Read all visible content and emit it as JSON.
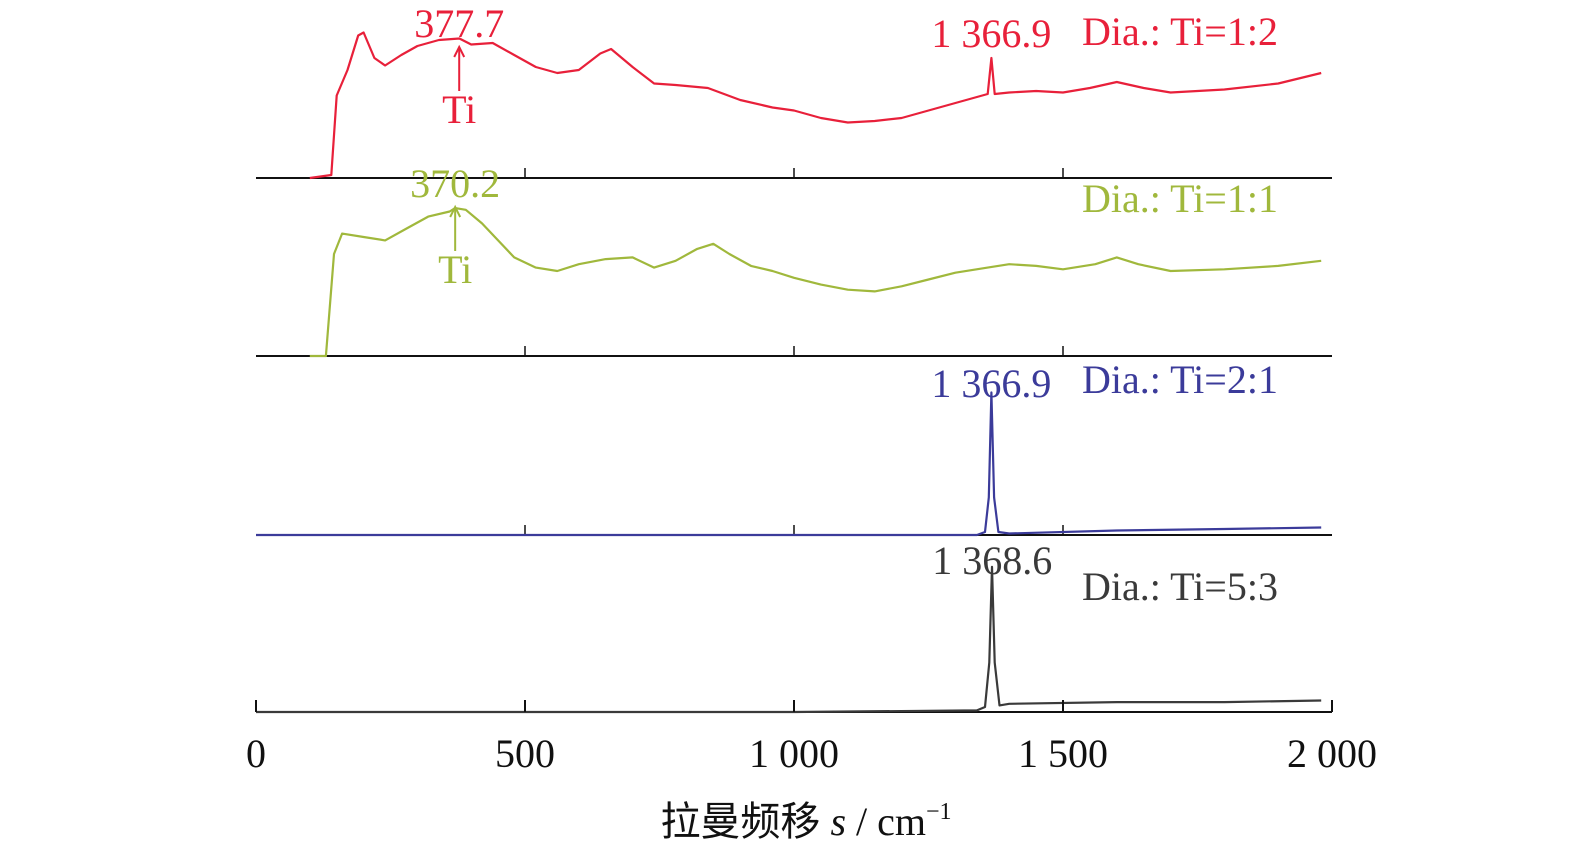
{
  "chart_data": {
    "type": "line",
    "layout": "stacked-offset",
    "xlabel": "拉曼频移",
    "xlabel_var": "s",
    "xlabel_unit": "cm",
    "xlabel_unit_exp": "−1",
    "xlim": [
      0,
      2000
    ],
    "x_ticks": [
      0,
      500,
      1000,
      1500,
      2000
    ],
    "x_tick_labels": [
      "0",
      "500",
      "1 000",
      "1 500",
      "2 000"
    ],
    "series": [
      {
        "name": "Dia.: Ti=1:2",
        "color": "#e8203a",
        "points": [
          [
            100,
            0.0
          ],
          [
            140,
            0.02
          ],
          [
            150,
            0.55
          ],
          [
            170,
            0.72
          ],
          [
            190,
            0.95
          ],
          [
            200,
            0.97
          ],
          [
            220,
            0.8
          ],
          [
            240,
            0.75
          ],
          [
            270,
            0.82
          ],
          [
            300,
            0.88
          ],
          [
            340,
            0.92
          ],
          [
            378,
            0.93
          ],
          [
            400,
            0.89
          ],
          [
            440,
            0.9
          ],
          [
            480,
            0.82
          ],
          [
            520,
            0.74
          ],
          [
            560,
            0.7
          ],
          [
            600,
            0.72
          ],
          [
            640,
            0.83
          ],
          [
            660,
            0.86
          ],
          [
            700,
            0.74
          ],
          [
            740,
            0.63
          ],
          [
            780,
            0.62
          ],
          [
            840,
            0.6
          ],
          [
            900,
            0.52
          ],
          [
            960,
            0.47
          ],
          [
            1000,
            0.45
          ],
          [
            1050,
            0.4
          ],
          [
            1100,
            0.37
          ],
          [
            1150,
            0.38
          ],
          [
            1200,
            0.4
          ],
          [
            1250,
            0.45
          ],
          [
            1300,
            0.5
          ],
          [
            1350,
            0.55
          ],
          [
            1360,
            0.56
          ],
          [
            1367,
            0.8
          ],
          [
            1373,
            0.56
          ],
          [
            1400,
            0.57
          ],
          [
            1450,
            0.58
          ],
          [
            1500,
            0.57
          ],
          [
            1550,
            0.6
          ],
          [
            1600,
            0.64
          ],
          [
            1650,
            0.6
          ],
          [
            1700,
            0.57
          ],
          [
            1800,
            0.59
          ],
          [
            1900,
            0.63
          ],
          [
            1980,
            0.7
          ]
        ],
        "annotations": [
          {
            "label": "377.7",
            "x": 377.7
          },
          {
            "label": "1 366.9",
            "x": 1366.9
          }
        ],
        "marker": {
          "label": "Ti",
          "x": 377.7
        }
      },
      {
        "name": "Dia.: Ti=1:1",
        "color": "#a0b83c",
        "points": [
          [
            100,
            0.0
          ],
          [
            130,
            0.0
          ],
          [
            145,
            0.6
          ],
          [
            160,
            0.72
          ],
          [
            200,
            0.7
          ],
          [
            240,
            0.68
          ],
          [
            280,
            0.75
          ],
          [
            320,
            0.82
          ],
          [
            360,
            0.85
          ],
          [
            370,
            0.87
          ],
          [
            390,
            0.86
          ],
          [
            420,
            0.78
          ],
          [
            450,
            0.68
          ],
          [
            480,
            0.58
          ],
          [
            520,
            0.52
          ],
          [
            560,
            0.5
          ],
          [
            600,
            0.54
          ],
          [
            650,
            0.57
          ],
          [
            700,
            0.58
          ],
          [
            740,
            0.52
          ],
          [
            780,
            0.56
          ],
          [
            820,
            0.63
          ],
          [
            850,
            0.66
          ],
          [
            880,
            0.6
          ],
          [
            920,
            0.53
          ],
          [
            960,
            0.5
          ],
          [
            1000,
            0.46
          ],
          [
            1050,
            0.42
          ],
          [
            1100,
            0.39
          ],
          [
            1150,
            0.38
          ],
          [
            1200,
            0.41
          ],
          [
            1250,
            0.45
          ],
          [
            1300,
            0.49
          ],
          [
            1360,
            0.52
          ],
          [
            1400,
            0.54
          ],
          [
            1450,
            0.53
          ],
          [
            1500,
            0.51
          ],
          [
            1560,
            0.54
          ],
          [
            1600,
            0.58
          ],
          [
            1640,
            0.54
          ],
          [
            1700,
            0.5
          ],
          [
            1800,
            0.51
          ],
          [
            1900,
            0.53
          ],
          [
            1980,
            0.56
          ]
        ],
        "annotations": [
          {
            "label": "370.2",
            "x": 370.2
          }
        ],
        "marker": {
          "label": "Ti",
          "x": 370.2
        }
      },
      {
        "name": "Dia.: Ti=2:1",
        "color": "#3b3b9a",
        "points": [
          [
            0,
            0.0
          ],
          [
            500,
            0.0
          ],
          [
            1000,
            0.0
          ],
          [
            1340,
            0.0
          ],
          [
            1355,
            0.02
          ],
          [
            1362,
            0.25
          ],
          [
            1367,
            0.95
          ],
          [
            1372,
            0.25
          ],
          [
            1380,
            0.02
          ],
          [
            1400,
            0.01
          ],
          [
            1600,
            0.03
          ],
          [
            1800,
            0.04
          ],
          [
            1980,
            0.05
          ]
        ],
        "annotations": [
          {
            "label": "1 366.9",
            "x": 1366.9
          }
        ]
      },
      {
        "name": "Dia.: Ti=5:3",
        "color": "#3a3a3a",
        "points": [
          [
            0,
            0.0
          ],
          [
            500,
            0.0
          ],
          [
            1000,
            0.0
          ],
          [
            1340,
            0.01
          ],
          [
            1355,
            0.03
          ],
          [
            1363,
            0.3
          ],
          [
            1368,
            0.88
          ],
          [
            1373,
            0.3
          ],
          [
            1382,
            0.04
          ],
          [
            1400,
            0.05
          ],
          [
            1600,
            0.06
          ],
          [
            1800,
            0.06
          ],
          [
            1980,
            0.07
          ]
        ],
        "annotations": [
          {
            "label": "1 368.6",
            "x": 1368.6
          }
        ]
      }
    ]
  }
}
